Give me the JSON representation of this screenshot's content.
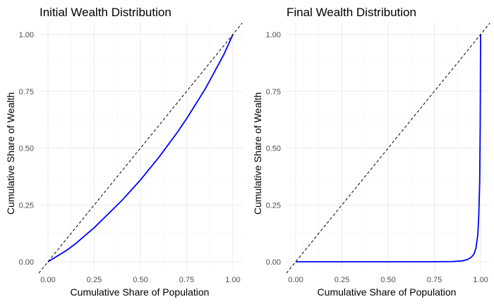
{
  "chart_data": [
    {
      "type": "line",
      "title": "Initial Wealth Distribution",
      "xlabel": "Cumulative Share of Population",
      "ylabel": "Cumulative Share of Wealth",
      "xlim": [
        0,
        1
      ],
      "ylim": [
        0,
        1
      ],
      "x_ticks": [
        "0.00",
        "0.25",
        "0.50",
        "0.75",
        "1.00"
      ],
      "y_ticks": [
        "0.00",
        "0.25",
        "0.50",
        "0.75",
        "1.00"
      ],
      "grid": true,
      "colors": {
        "curve": "#0000ff",
        "reference": "#000000"
      },
      "series": [
        {
          "style": "solid",
          "x": [
            0,
            0.02,
            0.05,
            0.1,
            0.15,
            0.2,
            0.25,
            0.3,
            0.35,
            0.4,
            0.45,
            0.5,
            0.55,
            0.6,
            0.65,
            0.7,
            0.75,
            0.8,
            0.85,
            0.9,
            0.95,
            1.0
          ],
          "y": [
            0,
            0.01,
            0.025,
            0.05,
            0.08,
            0.115,
            0.15,
            0.19,
            0.23,
            0.27,
            0.315,
            0.36,
            0.41,
            0.46,
            0.515,
            0.57,
            0.63,
            0.695,
            0.76,
            0.835,
            0.91,
            1.0
          ]
        },
        {
          "style": "dashed",
          "x": [
            -0.05,
            1.05
          ],
          "y": [
            -0.05,
            1.05
          ]
        }
      ]
    },
    {
      "type": "line",
      "title": "Final Wealth Distribution",
      "xlabel": "Cumulative Share of Population",
      "ylabel": "Cumulative Share of Wealth",
      "xlim": [
        0,
        1
      ],
      "ylim": [
        0,
        1
      ],
      "x_ticks": [
        "0.00",
        "0.25",
        "0.50",
        "0.75",
        "1.00"
      ],
      "y_ticks": [
        "0.00",
        "0.25",
        "0.50",
        "0.75",
        "1.00"
      ],
      "grid": true,
      "colors": {
        "curve": "#0000ff",
        "reference": "#000000"
      },
      "series": [
        {
          "style": "solid",
          "x": [
            0,
            0.1,
            0.3,
            0.5,
            0.7,
            0.85,
            0.9,
            0.93,
            0.95,
            0.965,
            0.975,
            0.985,
            0.99,
            0.995,
            0.998,
            1.0
          ],
          "y": [
            0,
            0,
            0,
            0,
            0,
            0.001,
            0.004,
            0.01,
            0.02,
            0.035,
            0.06,
            0.12,
            0.2,
            0.35,
            0.6,
            1.0
          ]
        },
        {
          "style": "dashed",
          "x": [
            -0.05,
            1.05
          ],
          "y": [
            -0.05,
            1.05
          ]
        }
      ]
    }
  ]
}
